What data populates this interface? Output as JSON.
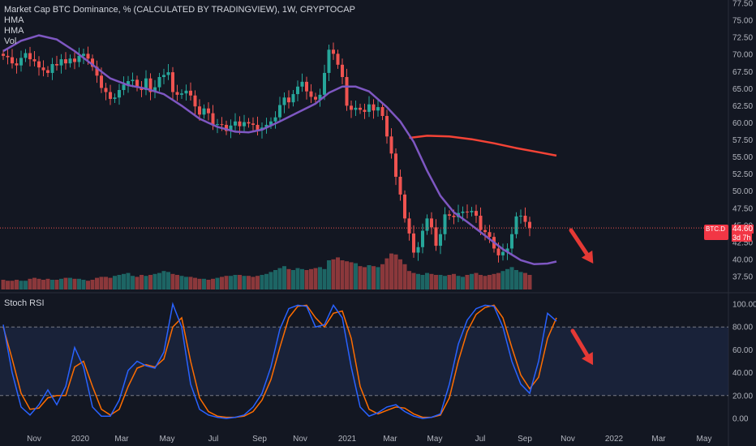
{
  "title": "Market Cap BTC Dominance, % (CALCULATED BY TRADINGVIEW), 1W, CRYPTOCAP",
  "legend_lines": [
    "HMA",
    "HMA",
    "Vol"
  ],
  "stoch_label": "Stoch RSI",
  "price_tag": {
    "symbol": "BTC.D",
    "value": "44.60",
    "countdown": "3d 7h"
  },
  "colors": {
    "background": "#131722",
    "up": "#26a69a",
    "down": "#ef5350",
    "hma_fast": "#7e57c2",
    "hma_slow": "#f44336",
    "stoch_k": "#2962ff",
    "stoch_d": "#ff6d00",
    "stoch_band": "#1e2a4a",
    "arrow": "#e53935"
  },
  "chart_data": [
    {
      "type": "candlestick",
      "name": "BTC Dominance",
      "y_ticks": [
        "77.50",
        "75.00",
        "72.50",
        "70.00",
        "67.50",
        "65.00",
        "62.50",
        "60.00",
        "57.50",
        "55.00",
        "52.50",
        "50.00",
        "47.50",
        "45.00",
        "42.50",
        "40.00",
        "37.50"
      ],
      "ylim": [
        35.7,
        77.5
      ],
      "x_ticks": [
        "Nov",
        "2020",
        "Mar",
        "May",
        "Jul",
        "Sep",
        "Nov",
        "2021",
        "Mar",
        "May",
        "Jul",
        "Sep",
        "Nov",
        "2022",
        "Mar",
        "May"
      ],
      "closes": [
        69.8,
        69.6,
        68.7,
        68.4,
        69.5,
        70.2,
        69.3,
        69.0,
        68.1,
        67.7,
        67.3,
        68.6,
        68.4,
        69.3,
        68.7,
        69.4,
        68.9,
        69.8,
        70.1,
        69.4,
        68.2,
        66.9,
        65.1,
        64.5,
        63.5,
        63.7,
        64.8,
        65.6,
        66.1,
        66.3,
        65.2,
        64.8,
        66.5,
        64.5,
        65.2,
        66.7,
        67.0,
        67.4,
        64.5,
        64.1,
        64.3,
        64.7,
        64.0,
        62.4,
        61.2,
        62.1,
        61.4,
        59.7,
        59.8,
        59.7,
        58.8,
        59.6,
        60.2,
        59.5,
        60.1,
        59.9,
        59.7,
        58.9,
        59.3,
        59.7,
        60.2,
        60.8,
        62.6,
        63.7,
        63.0,
        64.2,
        65.3,
        66.0,
        64.6,
        63.8,
        63.4,
        64.1,
        67.3,
        70.7,
        70.1,
        68.5,
        66.7,
        62.5,
        61.9,
        62.2,
        61.9,
        61.6,
        62.7,
        61.8,
        62.3,
        61.0,
        58.0,
        55.5,
        52.1,
        49.5,
        46.0,
        43.8,
        41.0,
        41.8,
        44.2,
        46.0,
        44.7,
        42.0,
        43.7,
        46.6,
        46.4,
        46.2,
        46.8,
        47.0,
        46.9,
        47.1,
        46.4,
        44.3,
        44.0,
        43.3,
        41.6,
        40.6,
        41.1,
        41.6,
        43.7,
        46.3,
        46.4,
        45.5,
        44.6
      ],
      "hma_fast": [
        [
          0,
          70.5
        ],
        [
          4,
          72.0
        ],
        [
          8,
          72.8
        ],
        [
          12,
          72.2
        ],
        [
          16,
          70.5
        ],
        [
          20,
          68.5
        ],
        [
          24,
          66.5
        ],
        [
          28,
          65.5
        ],
        [
          32,
          65.0
        ],
        [
          36,
          64.2
        ],
        [
          40,
          62.5
        ],
        [
          44,
          60.6
        ],
        [
          48,
          59.4
        ],
        [
          52,
          58.7
        ],
        [
          55,
          58.6
        ],
        [
          58,
          59.0
        ],
        [
          62,
          60.2
        ],
        [
          66,
          61.5
        ],
        [
          70,
          62.8
        ],
        [
          73,
          64.4
        ],
        [
          76,
          65.3
        ],
        [
          79,
          65.3
        ],
        [
          82,
          64.6
        ],
        [
          86,
          62.3
        ],
        [
          89,
          60.2
        ],
        [
          92,
          57.2
        ],
        [
          95,
          53.0
        ],
        [
          98,
          49.3
        ],
        [
          101,
          46.9
        ],
        [
          104,
          45.5
        ],
        [
          108,
          43.5
        ],
        [
          112,
          41.5
        ],
        [
          116,
          39.9
        ],
        [
          119,
          39.3
        ],
        [
          122,
          39.4
        ],
        [
          124,
          39.7
        ]
      ],
      "hma_slow": [
        [
          91,
          57.8
        ],
        [
          95,
          58.1
        ],
        [
          100,
          58.0
        ],
        [
          105,
          57.6
        ],
        [
          110,
          57.0
        ],
        [
          115,
          56.3
        ],
        [
          120,
          55.7
        ],
        [
          124,
          55.2
        ]
      ],
      "volume": [
        10,
        9,
        9,
        10,
        9,
        9,
        11,
        12,
        11,
        10,
        11,
        10,
        10,
        11,
        12,
        12,
        11,
        11,
        10,
        9,
        10,
        12,
        13,
        13,
        12,
        14,
        15,
        16,
        17,
        14,
        13,
        15,
        14,
        15,
        16,
        17,
        19,
        18,
        16,
        15,
        14,
        13,
        13,
        12,
        11,
        11,
        10,
        11,
        12,
        13,
        14,
        14,
        15,
        15,
        14,
        14,
        13,
        14,
        15,
        16,
        18,
        20,
        22,
        24,
        21,
        20,
        22,
        21,
        20,
        21,
        22,
        23,
        21,
        30,
        31,
        33,
        30,
        29,
        28,
        27,
        24,
        23,
        25,
        24,
        23,
        26,
        32,
        37,
        36,
        31,
        26,
        19,
        17,
        16,
        15,
        17,
        16,
        15,
        15,
        14,
        15,
        16,
        14,
        13,
        15,
        16,
        17,
        15,
        14,
        15,
        16,
        17,
        19,
        21,
        23,
        20,
        18,
        17,
        15
      ]
    },
    {
      "type": "line",
      "name": "Stoch RSI",
      "y_ticks": [
        "100.00",
        "80.00",
        "60.00",
        "40.00",
        "20.00",
        "0.00"
      ],
      "ylim": [
        -7,
        104
      ],
      "bands": [
        20,
        80
      ],
      "series": [
        {
          "name": "K",
          "values": [
            [
              0,
              82
            ],
            [
              2,
              40
            ],
            [
              4,
              10
            ],
            [
              6,
              3
            ],
            [
              8,
              12
            ],
            [
              10,
              25
            ],
            [
              12,
              12
            ],
            [
              14,
              28
            ],
            [
              16,
              62
            ],
            [
              18,
              45
            ],
            [
              20,
              10
            ],
            [
              22,
              2
            ],
            [
              24,
              2
            ],
            [
              26,
              16
            ],
            [
              28,
              42
            ],
            [
              30,
              50
            ],
            [
              32,
              46
            ],
            [
              34,
              44
            ],
            [
              36,
              58
            ],
            [
              38,
              100
            ],
            [
              40,
              80
            ],
            [
              42,
              30
            ],
            [
              44,
              8
            ],
            [
              46,
              3
            ],
            [
              48,
              1
            ],
            [
              50,
              0
            ],
            [
              52,
              1
            ],
            [
              54,
              3
            ],
            [
              56,
              10
            ],
            [
              58,
              22
            ],
            [
              60,
              45
            ],
            [
              62,
              78
            ],
            [
              64,
              96
            ],
            [
              66,
              99
            ],
            [
              68,
              98
            ],
            [
              70,
              80
            ],
            [
              72,
              82
            ],
            [
              74,
              99
            ],
            [
              76,
              88
            ],
            [
              78,
              45
            ],
            [
              80,
              10
            ],
            [
              82,
              2
            ],
            [
              84,
              5
            ],
            [
              86,
              10
            ],
            [
              88,
              12
            ],
            [
              90,
              6
            ],
            [
              92,
              2
            ],
            [
              94,
              0
            ],
            [
              96,
              1
            ],
            [
              98,
              4
            ],
            [
              100,
              30
            ],
            [
              102,
              65
            ],
            [
              104,
              86
            ],
            [
              106,
              96
            ],
            [
              108,
              99
            ],
            [
              110,
              98
            ],
            [
              112,
              80
            ],
            [
              114,
              50
            ],
            [
              116,
              30
            ],
            [
              118,
              22
            ],
            [
              120,
              50
            ],
            [
              122,
              92
            ],
            [
              124,
              85
            ]
          ]
        },
        {
          "name": "D",
          "values": [
            [
              0,
              80
            ],
            [
              2,
              52
            ],
            [
              4,
              22
            ],
            [
              6,
              8
            ],
            [
              8,
              9
            ],
            [
              10,
              18
            ],
            [
              12,
              20
            ],
            [
              14,
              20
            ],
            [
              16,
              45
            ],
            [
              18,
              50
            ],
            [
              20,
              28
            ],
            [
              22,
              8
            ],
            [
              24,
              3
            ],
            [
              26,
              8
            ],
            [
              28,
              28
            ],
            [
              30,
              44
            ],
            [
              32,
              47
            ],
            [
              34,
              45
            ],
            [
              36,
              52
            ],
            [
              38,
              80
            ],
            [
              40,
              88
            ],
            [
              42,
              50
            ],
            [
              44,
              18
            ],
            [
              46,
              6
            ],
            [
              48,
              2
            ],
            [
              50,
              1
            ],
            [
              52,
              1
            ],
            [
              54,
              2
            ],
            [
              56,
              6
            ],
            [
              58,
              16
            ],
            [
              60,
              34
            ],
            [
              62,
              62
            ],
            [
              64,
              88
            ],
            [
              66,
              98
            ],
            [
              68,
              99
            ],
            [
              70,
              88
            ],
            [
              72,
              80
            ],
            [
              74,
              92
            ],
            [
              76,
              94
            ],
            [
              78,
              70
            ],
            [
              80,
              28
            ],
            [
              82,
              8
            ],
            [
              84,
              4
            ],
            [
              86,
              7
            ],
            [
              88,
              10
            ],
            [
              90,
              9
            ],
            [
              92,
              4
            ],
            [
              94,
              1
            ],
            [
              96,
              1
            ],
            [
              98,
              3
            ],
            [
              100,
              18
            ],
            [
              102,
              50
            ],
            [
              104,
              76
            ],
            [
              106,
              91
            ],
            [
              108,
              97
            ],
            [
              110,
              99
            ],
            [
              112,
              88
            ],
            [
              114,
              62
            ],
            [
              116,
              38
            ],
            [
              118,
              26
            ],
            [
              120,
              36
            ],
            [
              122,
              70
            ],
            [
              124,
              88
            ]
          ]
        }
      ]
    }
  ]
}
